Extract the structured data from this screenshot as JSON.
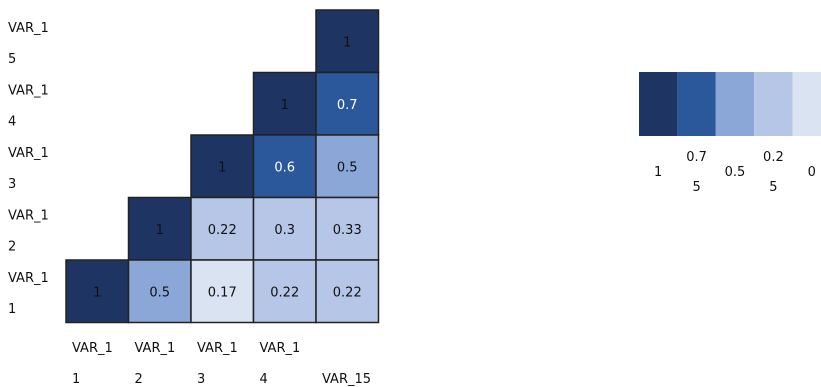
{
  "chart_data": {
    "type": "heatmap",
    "title": "",
    "layout": "lower-triangle correlation matrix",
    "row_labels": [
      "VAR_15",
      "VAR_14",
      "VAR_13",
      "VAR_12",
      "VAR_11"
    ],
    "col_labels": [
      "VAR_11",
      "VAR_12",
      "VAR_13",
      "VAR_14",
      "VAR_15"
    ],
    "axis_labels": {
      "rows": [
        {
          "line1": "VAR_1",
          "line2": "5"
        },
        {
          "line1": "VAR_1",
          "line2": "4"
        },
        {
          "line1": "VAR_1",
          "line2": "3"
        },
        {
          "line1": "VAR_1",
          "line2": "2"
        },
        {
          "line1": "VAR_1",
          "line2": "1"
        }
      ],
      "cols": [
        {
          "line1": "VAR_1",
          "line2": "1"
        },
        {
          "line1": "VAR_1",
          "line2": "2"
        },
        {
          "line1": "VAR_1",
          "line2": "3"
        },
        {
          "line1": "VAR_1",
          "line2": "4"
        },
        {
          "line1": "",
          "line2": "VAR_15"
        }
      ]
    },
    "cells": [
      [
        null,
        null,
        null,
        null,
        "1"
      ],
      [
        null,
        null,
        null,
        "1",
        "0.7"
      ],
      [
        null,
        null,
        "1",
        "0.6",
        "0.5"
      ],
      [
        null,
        "1",
        "0.22",
        "0.3",
        "0.33"
      ],
      [
        "1",
        "0.5",
        "0.17",
        "0.22",
        "0.22"
      ]
    ],
    "color_scale": {
      "bins": [
        {
          "color": "#1e3463",
          "label_line1": "1",
          "label_line2": ""
        },
        {
          "color": "#2b579b",
          "label_line1": "0.7",
          "label_line2": "5"
        },
        {
          "color": "#8ba7d7",
          "label_line1": "0.5",
          "label_line2": ""
        },
        {
          "color": "#b6c6e7",
          "label_line1": "0.2",
          "label_line2": "5"
        },
        {
          "color": "#dae3f2",
          "label_line1": "0",
          "label_line2": ""
        }
      ]
    },
    "legend_position": "right",
    "cell_border_color": "#222222",
    "dark_text_color": "#111111"
  }
}
